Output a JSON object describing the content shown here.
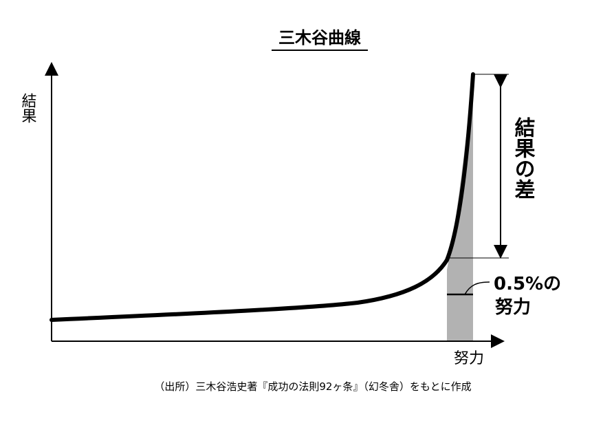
{
  "title": "三木谷曲線",
  "y_axis_label": "結果",
  "x_axis_label": "努力",
  "gap_label": "結果の差",
  "effort_label_line1": "0.5%の",
  "effort_label_line2": "努力",
  "source": "（出所）三木谷浩史著『成功の法則92ヶ条』（幻冬舎）をもとに作成",
  "colors": {
    "curve": "#000000",
    "shade": "#b2b2b2",
    "text": "#111111"
  }
}
